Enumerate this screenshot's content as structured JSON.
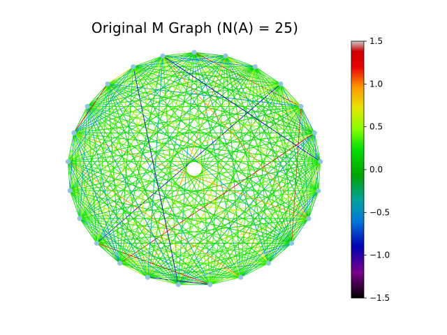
{
  "title": "Original M Graph (N(A) = 25)",
  "graph": {
    "node_count": 25,
    "node_color": "#8ec5e0",
    "edge_colormap": "nipy_spectral"
  },
  "colorbar": {
    "min": -1.5,
    "max": 1.5,
    "ticks": [
      "1.5",
      "1.0",
      "0.5",
      "0.0",
      "−0.5",
      "−1.0",
      "−1.5"
    ]
  }
}
